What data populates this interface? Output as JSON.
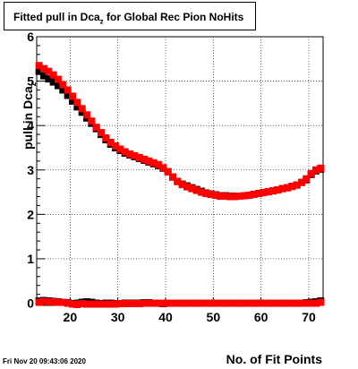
{
  "chart_data": {
    "type": "scatter",
    "title_prefix": "Fitted pull in Dca",
    "title_sub": "z",
    "title_suffix": " for Global Rec Pion NoHits",
    "ylabel_main": "pull in Dca",
    "ylabel_sub": "z",
    "xlabel": "No. of Fit Points",
    "xlim": [
      13,
      73
    ],
    "ylim": [
      -0.05,
      6
    ],
    "x_ticks": [
      20,
      30,
      40,
      50,
      60,
      70
    ],
    "y_ticks": [
      0,
      1,
      2,
      3,
      4,
      5,
      6
    ],
    "grid": true,
    "series": [
      {
        "color": "#000000",
        "x": [
          13.5,
          14.5,
          15.5,
          16.5,
          17.5,
          18.5,
          19.5,
          20.5,
          21.5,
          22.5,
          23.5,
          24.5,
          25.5,
          26.5,
          27.5,
          28.5,
          29.5,
          30.5,
          31.5,
          32.5,
          33.5,
          34.5,
          35.5,
          36.5,
          37.5,
          38.5,
          39.5,
          40.5,
          41.5,
          42.5,
          43.5,
          44.5,
          45.5,
          46.5,
          47.5,
          48.5,
          49.5,
          50.5,
          51.5,
          52.5,
          53.5,
          54.5,
          55.5,
          56.5,
          57.5,
          58.5,
          59.5,
          60.5,
          61.5,
          62.5,
          63.5,
          64.5,
          65.5,
          66.5,
          67.5,
          68.5,
          69.5,
          70.5,
          71.5,
          72.5
        ],
        "y": [
          5.22,
          5.12,
          5.05,
          4.98,
          4.9,
          4.8,
          4.68,
          4.55,
          4.42,
          4.3,
          4.17,
          4.05,
          3.93,
          3.8,
          3.68,
          3.58,
          3.5,
          3.44,
          3.38,
          3.34,
          3.3,
          3.26,
          3.22,
          3.18,
          3.14,
          3.1,
          3.04,
          2.96,
          2.84,
          2.74,
          2.68,
          2.64,
          2.6,
          2.56,
          2.52,
          2.48,
          2.46,
          2.44,
          2.42,
          2.42,
          2.41,
          2.41,
          2.41,
          2.42,
          2.43,
          2.45,
          2.47,
          2.49,
          2.51,
          2.53,
          2.55,
          2.58,
          2.6,
          2.63,
          2.66,
          2.72,
          2.78,
          2.9,
          2.98,
          3.02
        ]
      },
      {
        "color": "#ff0000",
        "x": [
          13.5,
          14.5,
          15.5,
          16.5,
          17.5,
          18.5,
          19.5,
          20.5,
          21.5,
          22.5,
          23.5,
          24.5,
          25.5,
          26.5,
          27.5,
          28.5,
          29.5,
          30.5,
          31.5,
          32.5,
          33.5,
          34.5,
          35.5,
          36.5,
          37.5,
          38.5,
          39.5,
          40.5,
          41.5,
          42.5,
          43.5,
          44.5,
          45.5,
          46.5,
          47.5,
          48.5,
          49.5,
          50.5,
          51.5,
          52.5,
          53.5,
          54.5,
          55.5,
          56.5,
          57.5,
          58.5,
          59.5,
          60.5,
          61.5,
          62.5,
          63.5,
          64.5,
          65.5,
          66.5,
          67.5,
          68.5,
          69.5,
          70.5,
          71.5,
          72.5
        ],
        "y": [
          5.35,
          5.28,
          5.22,
          5.14,
          5.04,
          4.92,
          4.8,
          4.66,
          4.52,
          4.38,
          4.24,
          4.1,
          3.96,
          3.84,
          3.72,
          3.62,
          3.54,
          3.47,
          3.41,
          3.36,
          3.32,
          3.28,
          3.24,
          3.2,
          3.16,
          3.12,
          3.05,
          2.96,
          2.84,
          2.74,
          2.67,
          2.62,
          2.58,
          2.54,
          2.5,
          2.47,
          2.45,
          2.43,
          2.41,
          2.41,
          2.4,
          2.4,
          2.41,
          2.42,
          2.43,
          2.45,
          2.47,
          2.49,
          2.51,
          2.53,
          2.55,
          2.58,
          2.6,
          2.63,
          2.66,
          2.72,
          2.8,
          2.92,
          3.0,
          3.04
        ]
      },
      {
        "color": "#000000",
        "x": [
          13.5,
          14.5,
          15.5,
          16.5,
          17.5,
          18.5,
          19.5,
          20.5,
          21.5,
          22.5,
          23.5,
          24.5,
          25.5,
          26.5,
          27.5,
          28.5,
          29.5,
          30.5,
          31.5,
          32.5,
          33.5,
          34.5,
          35.5,
          36.5,
          37.5,
          38.5,
          39.5,
          40.5,
          41.5,
          42.5,
          43.5,
          44.5,
          45.5,
          46.5,
          47.5,
          48.5,
          49.5,
          50.5,
          51.5,
          52.5,
          53.5,
          54.5,
          55.5,
          56.5,
          57.5,
          58.5,
          59.5,
          60.5,
          61.5,
          62.5,
          63.5,
          64.5,
          65.5,
          66.5,
          67.5,
          68.5,
          69.5,
          70.5,
          71.5,
          72.5
        ],
        "y": [
          0.05,
          0.06,
          0.05,
          0.04,
          0.03,
          0.02,
          0.01,
          -0.01,
          0.0,
          0.02,
          0.03,
          0.02,
          0.0,
          -0.01,
          0.0,
          0.0,
          -0.01,
          -0.01,
          0.0,
          0.0,
          0.0,
          0.0,
          0.01,
          0.01,
          0.0,
          0.0,
          -0.01,
          0.0,
          0.0,
          0.0,
          0.0,
          0.0,
          0.0,
          0.0,
          0.0,
          0.0,
          0.0,
          0.0,
          0.0,
          0.0,
          0.0,
          0.0,
          0.0,
          0.0,
          0.0,
          0.0,
          0.0,
          0.0,
          0.0,
          0.0,
          0.0,
          0.0,
          0.0,
          0.0,
          0.0,
          0.0,
          0.01,
          0.02,
          0.03,
          0.05
        ]
      },
      {
        "color": "#ff0000",
        "x": [
          13.5,
          14.5,
          15.5,
          16.5,
          17.5,
          18.5,
          19.5,
          20.5,
          21.5,
          22.5,
          23.5,
          24.5,
          25.5,
          26.5,
          27.5,
          28.5,
          29.5,
          30.5,
          31.5,
          32.5,
          33.5,
          34.5,
          35.5,
          36.5,
          37.5,
          38.5,
          39.5,
          40.5,
          41.5,
          42.5,
          43.5,
          44.5,
          45.5,
          46.5,
          47.5,
          48.5,
          49.5,
          50.5,
          51.5,
          52.5,
          53.5,
          54.5,
          55.5,
          56.5,
          57.5,
          58.5,
          59.5,
          60.5,
          61.5,
          62.5,
          63.5,
          64.5,
          65.5,
          66.5,
          67.5,
          68.5,
          69.5,
          70.5,
          71.5,
          72.5
        ],
        "y": [
          0.02,
          0.04,
          0.03,
          0.03,
          0.02,
          0.02,
          0.0,
          -0.02,
          -0.03,
          -0.01,
          -0.02,
          -0.02,
          -0.02,
          -0.02,
          -0.02,
          -0.02,
          -0.02,
          -0.01,
          -0.01,
          -0.01,
          -0.01,
          -0.01,
          0.0,
          0.0,
          0.0,
          0.0,
          0.0,
          0.0,
          0.0,
          0.0,
          0.0,
          0.0,
          0.0,
          0.0,
          0.0,
          0.0,
          0.0,
          0.0,
          0.0,
          0.0,
          0.0,
          0.0,
          0.0,
          0.0,
          0.0,
          0.0,
          0.0,
          0.0,
          0.0,
          0.0,
          0.0,
          0.0,
          0.0,
          0.0,
          0.0,
          0.0,
          0.0,
          0.0,
          0.0,
          0.02
        ]
      }
    ]
  },
  "footer": {
    "datestamp": "Fri Nov 20 09:43:06 2020"
  }
}
